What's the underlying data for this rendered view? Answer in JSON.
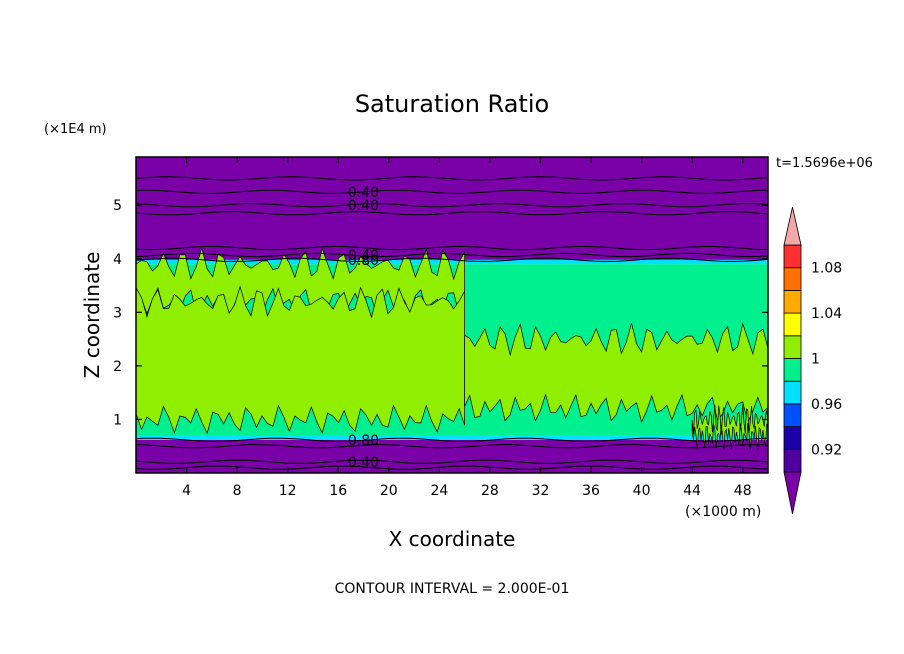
{
  "chart_data": {
    "type": "heatmap",
    "title": "Saturation Ratio",
    "xlabel": "X coordinate",
    "ylabel": "Z coordinate",
    "x_unit": "(×1000 m)",
    "y_unit": "(×1E4 m)",
    "time_label": "t=1.5696e+06",
    "footer": "CONTOUR INTERVAL = 2.000E-01",
    "xlim": [
      0,
      50
    ],
    "ylim": [
      0,
      5.9
    ],
    "x_ticks": [
      4,
      8,
      12,
      16,
      20,
      24,
      28,
      32,
      36,
      40,
      44,
      48
    ],
    "y_ticks": [
      1,
      2,
      3,
      4,
      5
    ],
    "colorbar": {
      "levels": [
        0.9,
        0.92,
        0.94,
        0.96,
        0.98,
        1.0,
        1.02,
        1.04,
        1.06,
        1.08,
        1.1
      ],
      "labels": [
        "0.92",
        "0.96",
        "1",
        "1.04",
        "1.08"
      ],
      "colors": [
        "#5000a0",
        "#1c00a8",
        "#0050ff",
        "#00e0ff",
        "#00f090",
        "#90ee00",
        "#ffff00",
        "#ffaa00",
        "#ff7000",
        "#ff3030",
        "#ffb0b0"
      ],
      "under_color": "#7a00a8",
      "over_color": "#f4a8a8"
    },
    "bands": [
      {
        "z0": 0.0,
        "z1": 0.62,
        "value": "<0.90",
        "color": "#7a00a8"
      },
      {
        "z0": 0.62,
        "z1": 0.7,
        "value": 0.97,
        "color": "#00e0ff"
      },
      {
        "z0": 0.7,
        "z1": 3.9,
        "value": 0.99,
        "color": "#00f090"
      },
      {
        "z0": 3.9,
        "z1": 3.98,
        "value": 0.97,
        "color": "#00e0ff"
      },
      {
        "z0": 3.98,
        "z1": 5.9,
        "value": "<0.90",
        "color": "#7a00a8"
      }
    ],
    "supersaturated_patches": [
      {
        "x0": 0.0,
        "x1": 26,
        "z0": 3.2,
        "z1": 3.9,
        "value": 1.01
      },
      {
        "x0": 0.0,
        "x1": 26,
        "z0": 1.0,
        "z1": 3.2,
        "value": 1.01
      },
      {
        "x0": 26,
        "x1": 50,
        "z0": 1.2,
        "z1": 2.5,
        "value": 1.01
      },
      {
        "x0": 44,
        "x1": 50,
        "z0": 0.7,
        "z1": 1.0,
        "value": 1.01
      }
    ],
    "contour_labels": [
      {
        "x": 18,
        "z": 5.25,
        "text": "0.40"
      },
      {
        "x": 18,
        "z": 5.0,
        "text": "0.40"
      },
      {
        "x": 18,
        "z": 4.07,
        "text": "0.40"
      },
      {
        "x": 18,
        "z": 3.98,
        "text": "0.80"
      },
      {
        "x": 18,
        "z": 0.62,
        "text": "0.80"
      },
      {
        "x": 18,
        "z": 0.21,
        "text": "0.40"
      }
    ],
    "contour_lines_z": [
      5.5,
      5.25,
      5.0,
      4.85,
      4.2,
      4.07,
      3.98,
      0.62,
      0.5,
      0.21,
      0.1
    ]
  }
}
